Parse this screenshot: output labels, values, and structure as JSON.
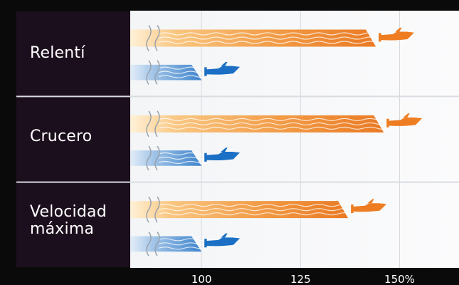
{
  "chart_data": {
    "type": "bar",
    "title": "",
    "xlabel": "",
    "ylabel": "",
    "categories": [
      "Relentí",
      "Crucero",
      "Velocidad\nmáxima"
    ],
    "x_ticks": [
      "100",
      "125",
      "150%"
    ],
    "x_tick_values": [
      100,
      125,
      150
    ],
    "xlim": [
      82,
      165
    ],
    "series": [
      {
        "values": [
          144,
          146,
          137
        ],
        "color": "#ee7d22"
      },
      {
        "values": [
          100,
          100,
          100
        ],
        "color": "#1b6fc4"
      }
    ],
    "icons": [
      "boat-icon"
    ],
    "grid": true,
    "legend": "none"
  }
}
